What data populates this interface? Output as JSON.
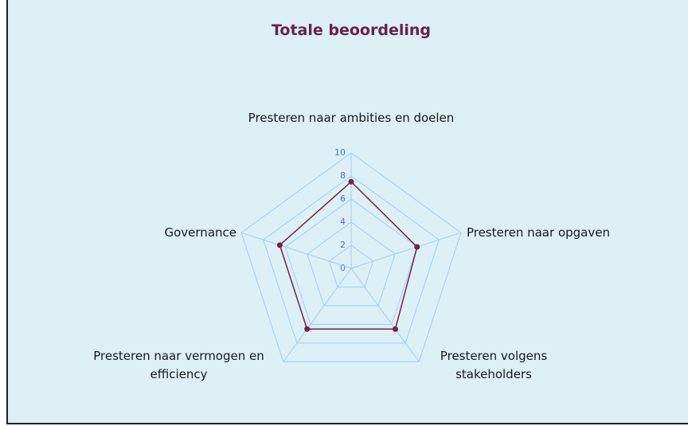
{
  "chart_data": {
    "type": "radar",
    "title": "Totale beoordeling",
    "categories": [
      "Presteren naar ambities en doelen",
      "Presteren naar opgaven",
      "Presteren volgens stakeholders",
      "Presteren naar vermogen en efficiency",
      "Governance"
    ],
    "series": [
      {
        "name": "Totale beoordeling",
        "color": "#7a1f45",
        "values": [
          7.5,
          6,
          6.5,
          6.5,
          6.5
        ]
      }
    ],
    "ylim": [
      0,
      10
    ],
    "yticks": [
      0,
      2,
      4,
      6,
      8,
      10
    ],
    "grid": true,
    "grid_color": "#9fcdf5"
  }
}
